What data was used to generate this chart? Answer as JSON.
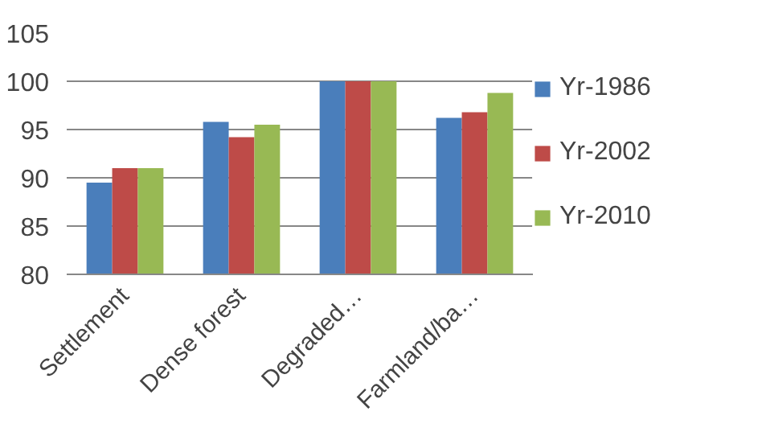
{
  "chart_data": {
    "type": "bar",
    "categories": [
      "Settlement",
      "Dense forest",
      "Degraded…",
      "Farmland/ba…"
    ],
    "series": [
      {
        "name": "Yr-1986",
        "color": "#4a7ebb",
        "values": [
          89.5,
          95.8,
          100,
          96.2
        ]
      },
      {
        "name": "Yr-2002",
        "color": "#be4b48",
        "values": [
          91,
          94.2,
          100,
          96.8
        ]
      },
      {
        "name": "Yr-2010",
        "color": "#98b954",
        "values": [
          91,
          95.5,
          100,
          98.8
        ]
      }
    ],
    "ylim": [
      80,
      105
    ],
    "yticks": [
      80,
      85,
      90,
      95,
      100,
      105
    ],
    "grid": "y",
    "legend": "right"
  }
}
